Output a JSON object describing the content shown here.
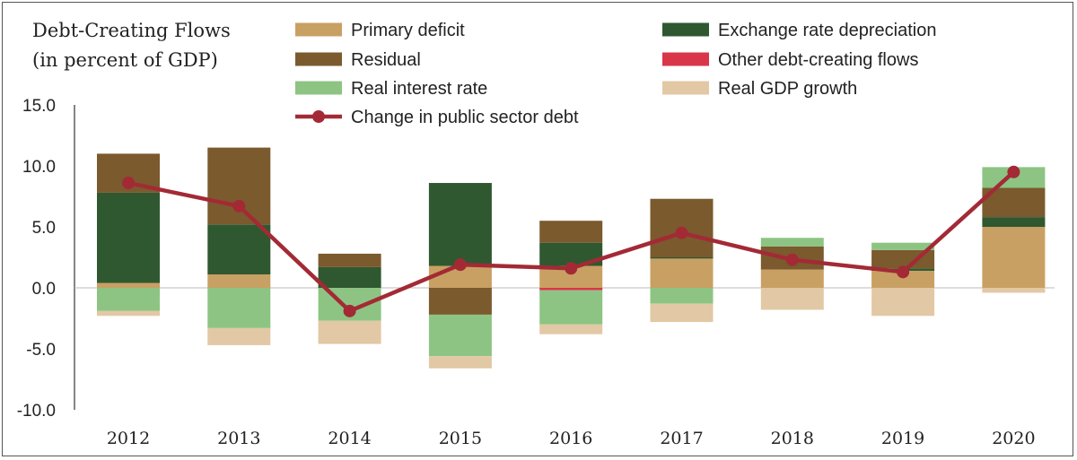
{
  "chart_data": {
    "type": "bar",
    "title": "Debt-Creating Flows",
    "subtitle": "(in percent of GDP)",
    "categories": [
      "2012",
      "2013",
      "2014",
      "2015",
      "2016",
      "2017",
      "2018",
      "2019",
      "2020"
    ],
    "ylim": [
      -10,
      15
    ],
    "yticks": [
      "15.0",
      "10.0",
      "5.0",
      "0.0",
      "-5.0",
      "-10.0"
    ],
    "ytick_values": [
      15,
      10,
      5,
      0,
      -5,
      -10
    ],
    "grid": false,
    "legend_position": "top",
    "series": [
      {
        "name": "Primary deficit",
        "color": "#c9a063",
        "values": [
          0.4,
          1.1,
          0.0,
          1.8,
          1.8,
          2.4,
          1.5,
          1.4,
          5.0
        ]
      },
      {
        "name": "Exchange rate depreciation",
        "color": "#2f5830",
        "values": [
          7.4,
          4.1,
          1.7,
          6.8,
          1.9,
          0.1,
          0.0,
          0.2,
          0.8
        ]
      },
      {
        "name": "Residual",
        "color": "#7b5a2e",
        "values": [
          3.2,
          6.3,
          1.1,
          -2.2,
          1.8,
          4.8,
          1.9,
          1.5,
          2.4
        ]
      },
      {
        "name": "Other debt-creating flows",
        "color": "#d9364a",
        "values": [
          0.0,
          0.0,
          0.0,
          0.0,
          -0.2,
          0.0,
          0.0,
          0.0,
          0.0
        ]
      },
      {
        "name": "Real interest rate",
        "color": "#8dc483",
        "values": [
          -1.9,
          -3.3,
          -2.7,
          -3.4,
          -2.8,
          -1.3,
          0.7,
          0.6,
          1.7
        ]
      },
      {
        "name": "Real GDP growth",
        "color": "#e2c8a4",
        "values": [
          -0.4,
          -1.4,
          -1.9,
          -1.0,
          -0.8,
          -1.5,
          -1.8,
          -2.3,
          -0.4
        ]
      }
    ],
    "line_series": {
      "name": "Change in public sector debt",
      "color": "#a32a35",
      "values": [
        8.6,
        6.7,
        -1.9,
        1.9,
        1.6,
        4.5,
        2.3,
        1.3,
        9.5
      ]
    }
  }
}
